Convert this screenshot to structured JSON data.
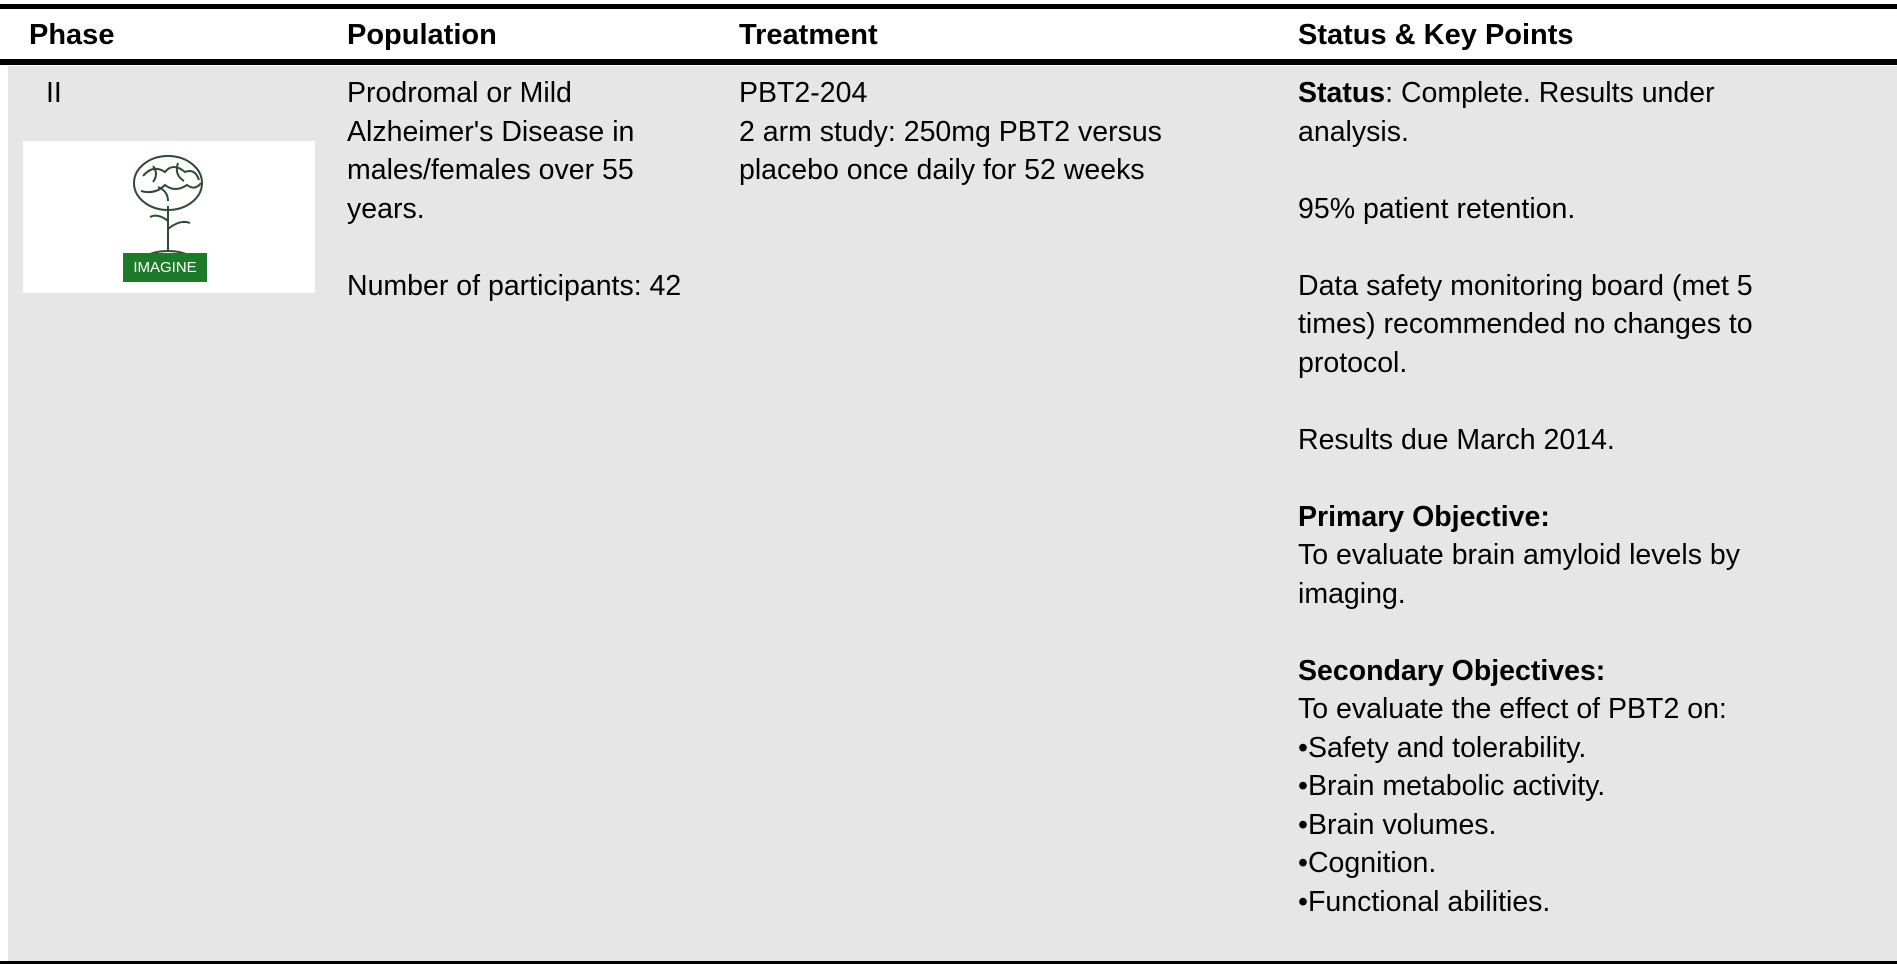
{
  "table": {
    "headers": [
      "Phase",
      "Population",
      "Treatment",
      "Status & Key Points"
    ],
    "rows": [
      {
        "phase": "II",
        "image_label": "IMAGINE",
        "population": [
          "Prodromal or Mild Alzheimer's Disease in males/females over 55 years.",
          "Number of participants: 42"
        ],
        "treatment": [
          "PBT2-204",
          "2 arm study: 250mg PBT2 versus placebo once daily for 52 weeks"
        ],
        "status": {
          "status_label": "Status",
          "status_text": ": Complete. Results under analysis.",
          "notes": [
            "95% patient retention.",
            "Data safety monitoring board (met 5 times) recommended no changes to protocol.",
            "Results due March 2014."
          ],
          "primary_objective": {
            "heading": "Primary Objective:",
            "text": "To evaluate brain amyloid levels by imaging."
          },
          "secondary_objectives": {
            "heading": "Secondary Objectives:",
            "intro": "To evaluate the effect of PBT2 on:",
            "items": [
              "•Safety and tolerability.",
              "•Brain metabolic activity.",
              "•Brain volumes.",
              "•Cognition.",
              "•Functional abilities."
            ]
          }
        }
      }
    ]
  }
}
